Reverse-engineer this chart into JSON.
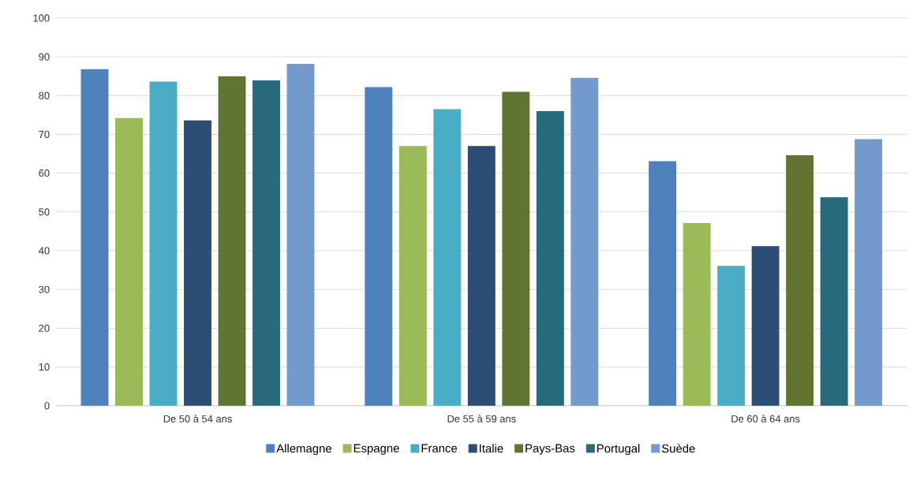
{
  "chart_data": {
    "type": "bar",
    "categories": [
      "De 50 à 54 ans",
      "De 55 à 59 ans",
      "De 60 à 64 ans"
    ],
    "series": [
      {
        "name": "Allemagne",
        "color": "#4f81bd",
        "values": [
          86.8,
          82.2,
          63.1
        ]
      },
      {
        "name": "Espagne",
        "color": "#9bbb59",
        "values": [
          74.2,
          67.0,
          47.1
        ]
      },
      {
        "name": "France",
        "color": "#4bacc6",
        "values": [
          83.6,
          76.5,
          36.1
        ]
      },
      {
        "name": "Italie",
        "color": "#2c4d75",
        "values": [
          73.6,
          67.0,
          41.2
        ]
      },
      {
        "name": "Pays-Bas",
        "color": "#5f7530",
        "values": [
          85.0,
          81.0,
          64.6
        ]
      },
      {
        "name": "Portugal",
        "color": "#276a7c",
        "values": [
          83.9,
          76.0,
          53.8
        ]
      },
      {
        "name": "Suède",
        "color": "#729aca",
        "values": [
          88.2,
          84.6,
          68.8
        ]
      }
    ],
    "ylim": [
      0,
      100
    ],
    "yticks": [
      0,
      10,
      20,
      30,
      40,
      50,
      60,
      70,
      80,
      90,
      100
    ],
    "grid": "y",
    "legend": "bottom"
  }
}
